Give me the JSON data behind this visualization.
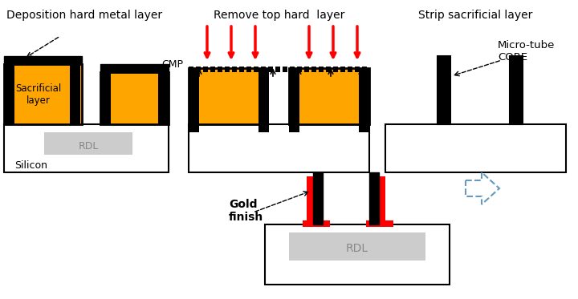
{
  "bg_color": "#ffffff",
  "orange_color": "#FFA500",
  "black_color": "#000000",
  "red_color": "#FF0000",
  "gray_color": "#CCCCCC",
  "step1_title": "Deposition hard metal layer",
  "step2_title": "Remove top hard  layer",
  "step3_title": "Strip sacrificial layer",
  "gold_label": "Gold\nfinish",
  "cmp_label": "CMP",
  "microtube_label": "Micro-tube\nCORE",
  "rdl_label": "RDL",
  "silicon_label": "Silicon",
  "sac_label": "Sacrificial\nlayer"
}
